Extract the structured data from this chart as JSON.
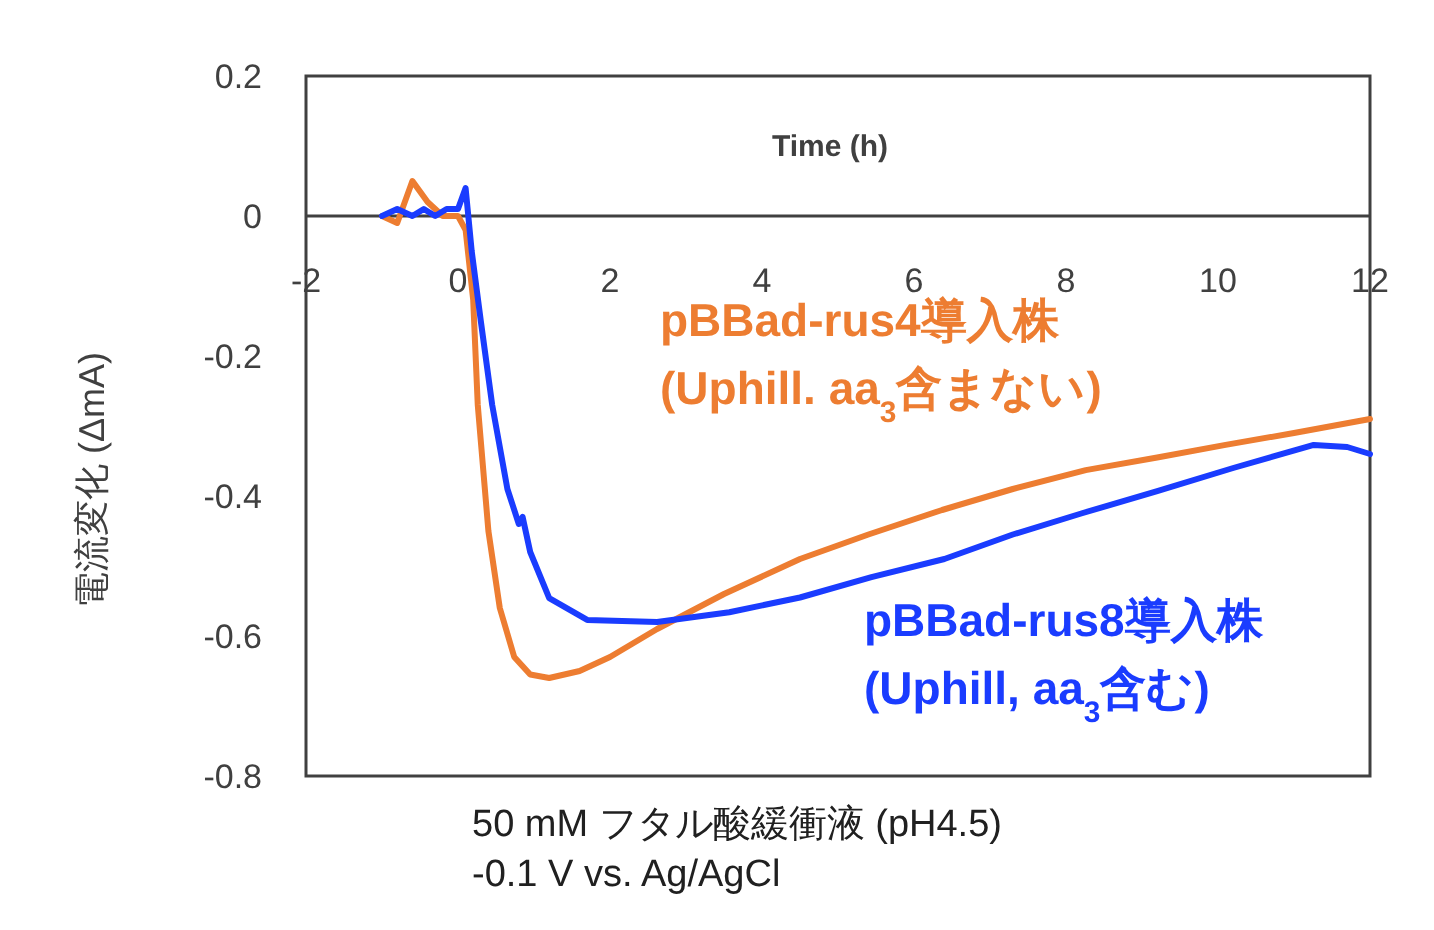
{
  "chart_data": {
    "type": "line",
    "xlabel": "Time (h)",
    "ylabel": "電流変化 (ΔmA)",
    "xlim": [
      -2,
      12
    ],
    "xticks": [
      -2,
      0,
      2,
      4,
      6,
      8,
      10,
      12
    ],
    "ylim": [
      -0.8,
      0.2
    ],
    "yticks": [
      {
        "value": 0.2,
        "label": "0.2"
      },
      0,
      {
        "value": -0.2,
        "label": "-0.2"
      },
      {
        "value": -0.4,
        "label": "-0.4"
      },
      {
        "value": -0.6,
        "label": "-0.6"
      },
      {
        "value": -0.8,
        "label": "-0.8"
      }
    ],
    "series": [
      {
        "name": "pBBad-rus4導入株 (Uphill. aa$_{3}$含まない)",
        "color": "#ed7d31",
        "x": [
          -1,
          -0.8,
          -0.6,
          -0.4,
          -0.2,
          0,
          0.1,
          0.2,
          0.26,
          0.4,
          0.55,
          0.74,
          0.95,
          1.2,
          1.6,
          2.0,
          2.62,
          3.5,
          4.5,
          5.4,
          6.37,
          7.3,
          8.26,
          9.2,
          10.1,
          11.0,
          12
        ],
        "values": [
          0,
          -0.01,
          0.05,
          0.02,
          0,
          0,
          -0.02,
          -0.12,
          -0.27,
          -0.45,
          -0.56,
          -0.63,
          -0.655,
          -0.66,
          -0.65,
          -0.63,
          -0.59,
          -0.54,
          -0.49,
          -0.455,
          -0.42,
          -0.39,
          -0.363,
          -0.345,
          -0.327,
          -0.31,
          -0.29
        ]
      },
      {
        "name": "pBBad-rus8導入株 (Uphill, aa$_{3}$含む)",
        "color": "#1a3cff",
        "x": [
          -1,
          -0.8,
          -0.6,
          -0.45,
          -0.3,
          -0.15,
          0,
          0.1,
          0.18,
          0.3,
          0.45,
          0.65,
          0.8,
          0.85,
          0.95,
          1.2,
          1.7,
          2.62,
          3.57,
          4.5,
          5.44,
          6.4,
          7.3,
          8.2,
          9.2,
          10.2,
          11.26,
          11.7,
          12
        ],
        "values": [
          0,
          0.01,
          0,
          0.01,
          0,
          0.01,
          0.01,
          0.04,
          -0.05,
          -0.15,
          -0.27,
          -0.39,
          -0.44,
          -0.43,
          -0.48,
          -0.546,
          -0.577,
          -0.58,
          -0.566,
          -0.545,
          -0.516,
          -0.49,
          -0.455,
          -0.425,
          -0.393,
          -0.36,
          -0.327,
          -0.33,
          -0.34
        ]
      }
    ],
    "annotations": [
      "50 mM フタル酸緩衝液 (pH4.5)",
      "-0.1 V vs. Ag/AgCl"
    ]
  }
}
